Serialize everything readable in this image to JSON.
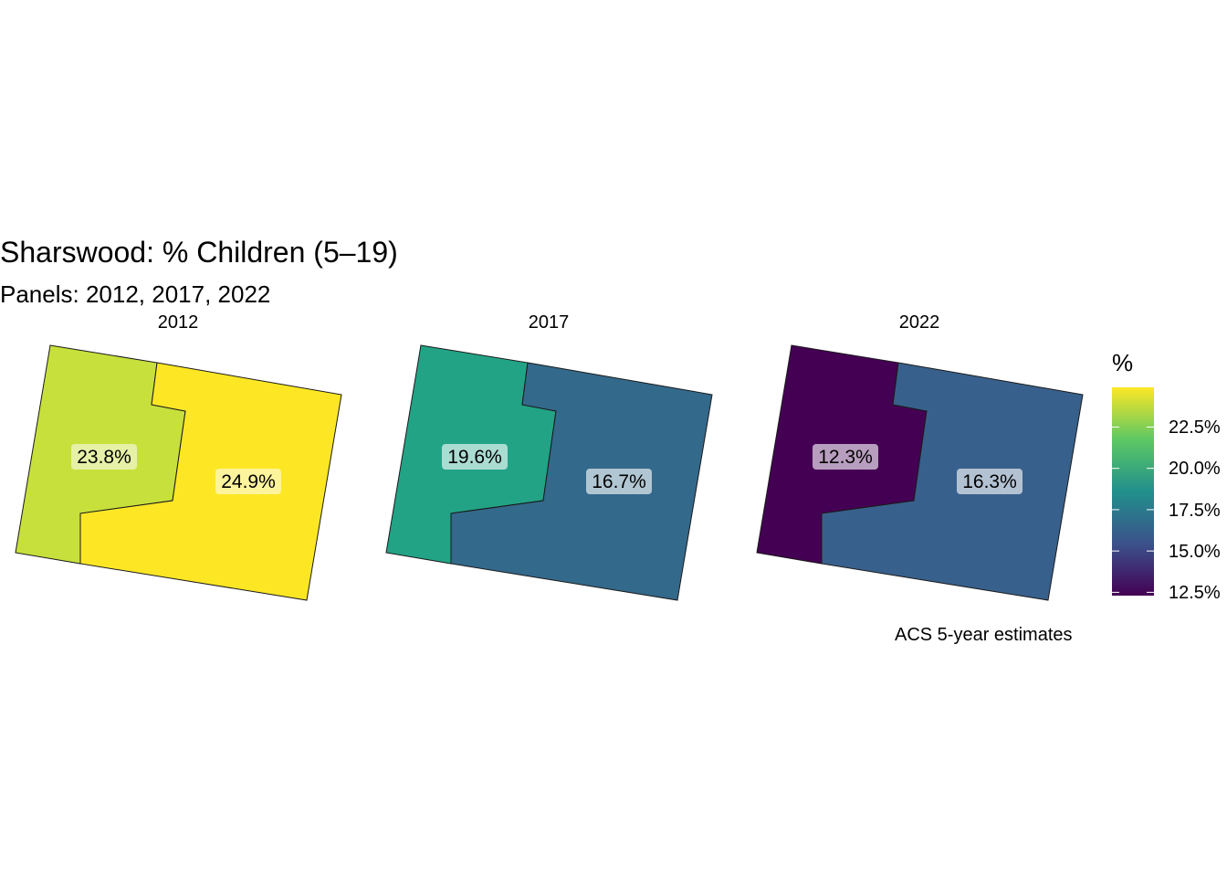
{
  "title": "Sharswood: % Children (5–19)",
  "subtitle": "Panels: 2012, 2017, 2022",
  "caption": "ACS 5-year estimates",
  "chart_data": {
    "type": "choropleth",
    "unit": "%",
    "panels": [
      {
        "year": "2012",
        "regions": [
          {
            "name": "west",
            "value": 23.8,
            "label": "23.8%",
            "color": "#C8E03C"
          },
          {
            "name": "east",
            "value": 24.9,
            "label": "24.9%",
            "color": "#FDE725"
          }
        ]
      },
      {
        "year": "2017",
        "regions": [
          {
            "name": "west",
            "value": 19.6,
            "label": "19.6%",
            "color": "#22A386"
          },
          {
            "name": "east",
            "value": 16.7,
            "label": "16.7%",
            "color": "#33698B"
          }
        ]
      },
      {
        "year": "2022",
        "regions": [
          {
            "name": "west",
            "value": 12.3,
            "label": "12.3%",
            "color": "#440154"
          },
          {
            "name": "east",
            "value": 16.3,
            "label": "16.3%",
            "color": "#38608C"
          }
        ]
      }
    ],
    "legend": {
      "title": "%",
      "range": [
        12.3,
        24.9
      ],
      "ticks": [
        {
          "value": 22.5,
          "label": "22.5%"
        },
        {
          "value": 20.0,
          "label": "20.0%"
        },
        {
          "value": 17.5,
          "label": "17.5%"
        },
        {
          "value": 15.0,
          "label": "15.0%"
        },
        {
          "value": 12.5,
          "label": "12.5%"
        }
      ],
      "colors": [
        "#440154",
        "#3B528B",
        "#21908C",
        "#5DC863",
        "#FDE725"
      ]
    }
  }
}
